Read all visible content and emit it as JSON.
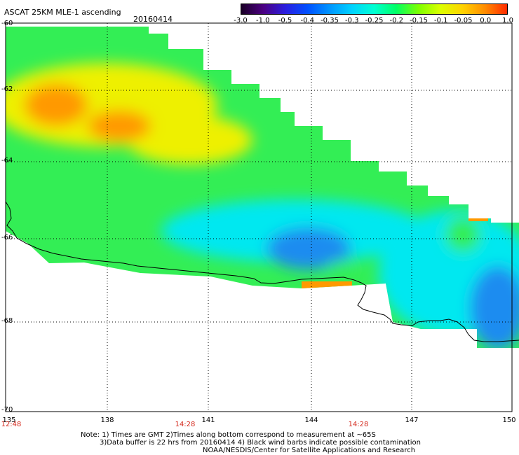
{
  "header": {
    "title": "ASCAT 25KM MLE-1 ascending",
    "date": "20160414"
  },
  "colorbar": {
    "labels": [
      "-3.0",
      "-1.0",
      "-0.5",
      "-0.4",
      "-0.35",
      "-0.3",
      "-0.25",
      "-0.2",
      "-0.15",
      "-0.1",
      "-0.05",
      "0.0",
      "1.0"
    ],
    "colors": [
      "#1a0026",
      "#4b0082",
      "#2a1ee0",
      "#0050ff",
      "#0096ff",
      "#00d2ff",
      "#00ffd2",
      "#00ff64",
      "#7dff00",
      "#dcff00",
      "#ffd200",
      "#ff8c00",
      "#ff2a00"
    ]
  },
  "axes": {
    "lon_labels": [
      "135",
      "138",
      "141",
      "144",
      "147",
      "150"
    ],
    "lat_labels": [
      "-60",
      "-62",
      "-64",
      "-66",
      "-68",
      "-70"
    ],
    "lon_range": [
      135,
      150
    ],
    "lat_range": [
      -70,
      -60
    ]
  },
  "times": [
    "12:48",
    "14:28",
    "14:28"
  ],
  "notes": [
    "Note: 1) Times are GMT 2)Times along bottom correspond to measurement at ~65S",
    "3)Data buffer is 22 hrs from 20160414 4) Black wind barbs indicate possible contamination",
    "NOAA/NESDIS/Center for Satellite Applications and Research"
  ],
  "map_colors": {
    "coast": "#000000",
    "grid": "#000000",
    "orange": "#ff9900",
    "yellow": "#eef000",
    "green": "#33ee55",
    "cyan": "#00e8f0",
    "blue": "#1c8cf0"
  }
}
